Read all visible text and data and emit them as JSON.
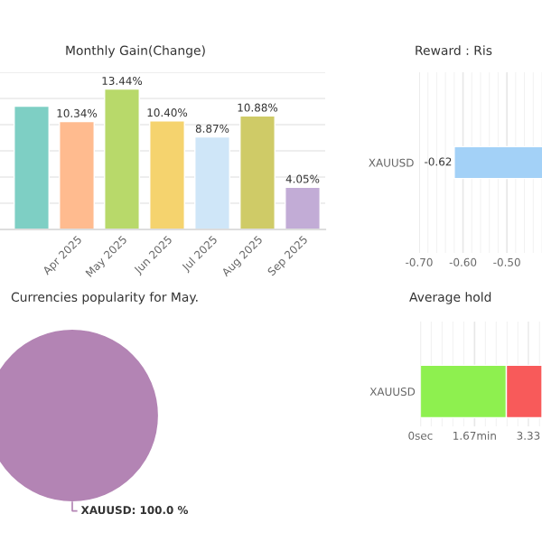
{
  "chart_data": [
    {
      "type": "bar",
      "title": "Monthly Gain(Change)",
      "categories": [
        null,
        "Apr 2025",
        "May 2025",
        "Jun 2025",
        "Jul 2025",
        "Aug 2025",
        "Sep 2025"
      ],
      "values": [
        11.8,
        10.34,
        13.44,
        10.4,
        8.87,
        10.88,
        4.05
      ],
      "colors": [
        "#7ecfc4",
        "#ffbb8f",
        "#b8d96a",
        "#f5d36e",
        "#cfe6f8",
        "#cfcb67",
        "#c2acd6"
      ],
      "value_labels": [
        null,
        "10.34%",
        "13.44%",
        "10.40%",
        "8.87%",
        "10.88%",
        "4.05%"
      ],
      "grid": "y",
      "tick_labels": "x"
    },
    {
      "type": "bar",
      "orientation": "horizontal",
      "title": "Reward : Ris",
      "categories": [
        "XAUUSD"
      ],
      "values": [
        -0.62
      ],
      "colors": [
        "#a3d1f7"
      ],
      "value_labels": [
        "-0.62"
      ],
      "xlim": [
        -0.7,
        -0.42
      ],
      "xticks": [
        {
          "value": -0.7,
          "label": "-0.70"
        },
        {
          "value": -0.6,
          "label": "-0.60"
        },
        {
          "value": -0.5,
          "label": "-0.50"
        }
      ],
      "grid": "x"
    },
    {
      "type": "pie",
      "title": "Currencies popularity for May.",
      "categories": [
        null
      ],
      "values": [
        100
      ],
      "colors": [
        "#b384b4"
      ],
      "value_labels": [
        "XAUUSD: 100.0 %"
      ]
    },
    {
      "type": "bar",
      "orientation": "horizontal",
      "stacked": true,
      "title": "Average hold",
      "categories": [
        "XAUUSD"
      ],
      "series": [
        {
          "color": "#8ef04f",
          "values": [
            2.65
          ]
        },
        {
          "color": "#f85a5a",
          "values": [
            1.1
          ]
        }
      ],
      "xlim": [
        0,
        3.75
      ],
      "xticks": [
        {
          "value": 0,
          "label": "0sec"
        },
        {
          "value": 1.67,
          "label": "1.67min"
        },
        {
          "value": 3.33,
          "label": "3.33"
        }
      ],
      "grid": "x"
    }
  ]
}
